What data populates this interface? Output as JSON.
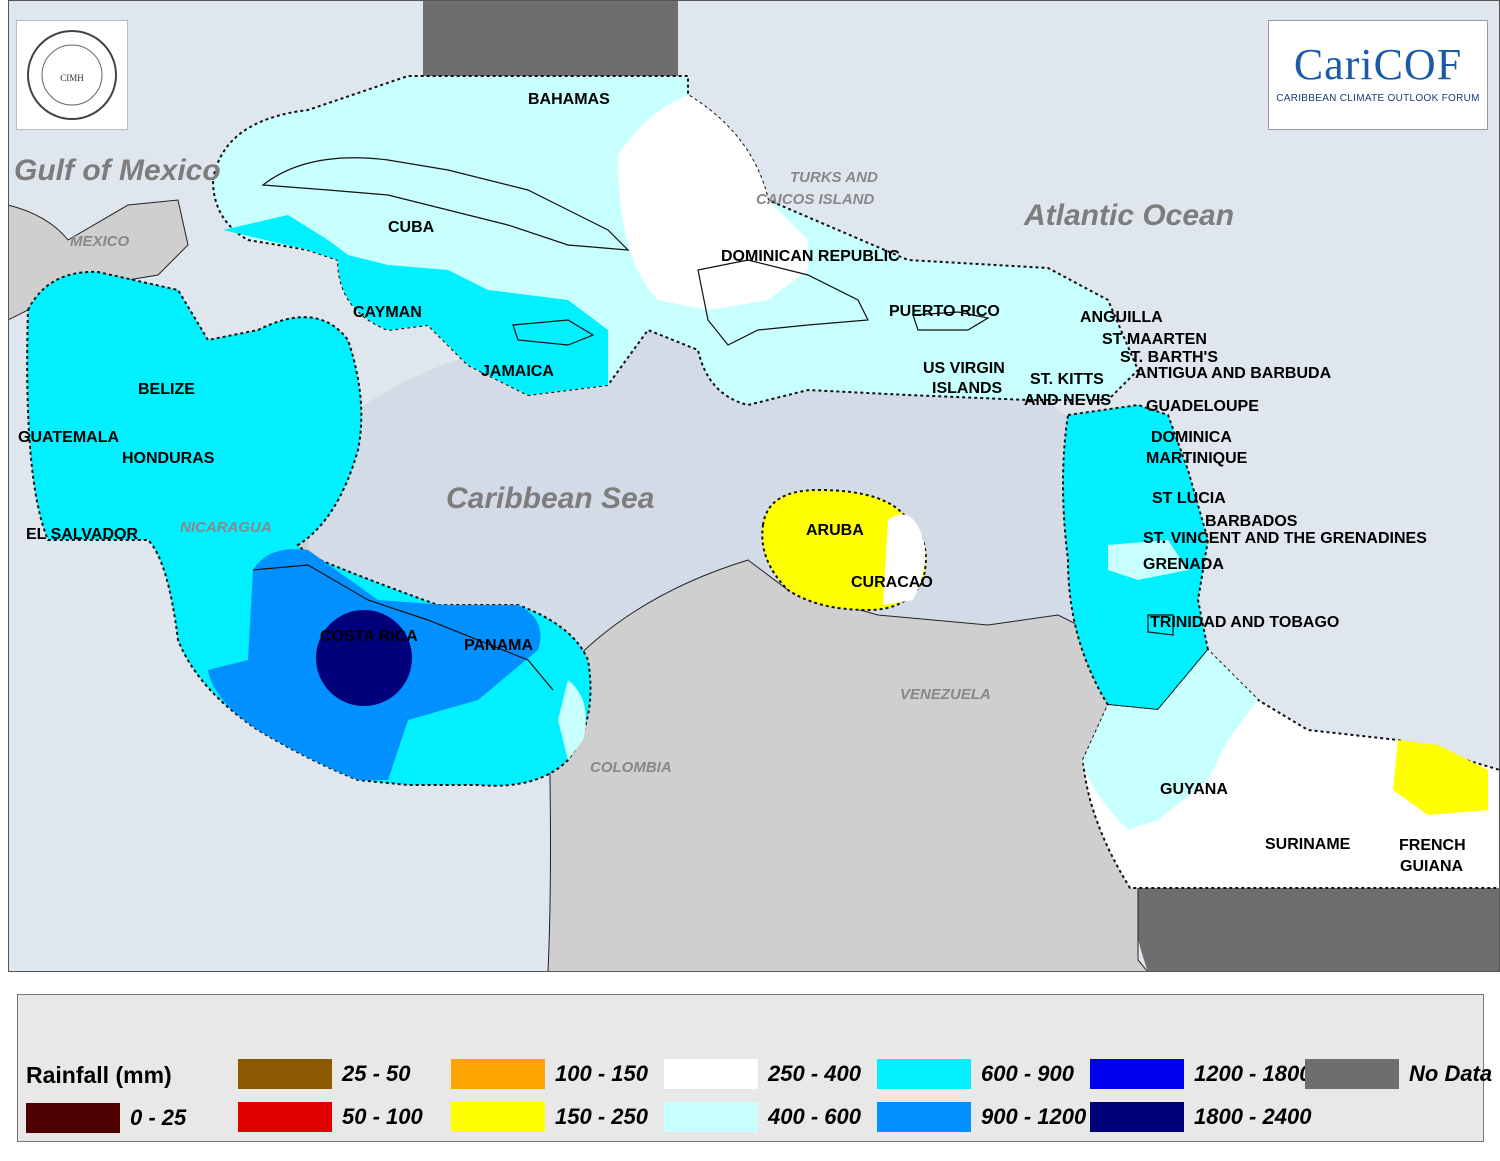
{
  "water_labels": {
    "gulf": "Gulf of Mexico",
    "atlantic": "Atlantic Ocean",
    "caribbean": "Caribbean Sea"
  },
  "land_labels": {
    "mexico": "MEXICO",
    "nicaragua": "NICARAGUA",
    "colombia": "COLOMBIA",
    "venezuela": "VENEZUELA",
    "turks1": "TURKS AND",
    "turks2": "CAICOS ISLAND"
  },
  "countries": {
    "bahamas": "BAHAMAS",
    "cuba": "CUBA",
    "cayman": "CAYMAN",
    "jamaica": "JAMAICA",
    "dominican_republic": "DOMINICAN REPUBLIC",
    "puerto_rico": "PUERTO RICO",
    "usvi1": "US VIRGIN",
    "usvi2": "ISLANDS",
    "stkitts1": "ST. KITTS",
    "stkitts2": "AND NEVIS",
    "anguilla": "ANGUILLA",
    "st_maarten": "ST MAARTEN",
    "st_barths": "ST. BARTH'S",
    "antigua": "ANTIGUA AND BARBUDA",
    "guadeloupe": "GUADELOUPE",
    "dominica": "DOMINICA",
    "martinique": "MARTINIQUE",
    "st_lucia": "ST LUCIA",
    "barbados": "BARBADOS",
    "st_vincent": "ST. VINCENT AND THE GRENADINES",
    "grenada": "GRENADA",
    "trinidad": "TRINIDAD AND TOBAGO",
    "guyana": "GUYANA",
    "suriname": "SURINAME",
    "french_guiana1": "FRENCH",
    "french_guiana2": "GUIANA",
    "belize": "BELIZE",
    "guatemala": "GUATEMALA",
    "honduras": "HONDURAS",
    "el_salvador": "EL SALVADOR",
    "costa_rica": "COSTA RICA",
    "panama": "PANAMA",
    "aruba": "ARUBA",
    "curacao": "CURACAO"
  },
  "logos": {
    "caricof_name": "CariCOF",
    "caricof_sub": "CARIBBEAN CLIMATE OUTLOOK FORUM",
    "cimh_text": "CIMH"
  },
  "legend": {
    "title": "Rainfall (mm)",
    "items": [
      {
        "label": "0 - 25",
        "color": "#4d0000"
      },
      {
        "label": "25 - 50",
        "color": "#8b5a00"
      },
      {
        "label": "50 - 100",
        "color": "#e00000"
      },
      {
        "label": "100 - 150",
        "color": "#ffa500"
      },
      {
        "label": "150 - 250",
        "color": "#ffff00"
      },
      {
        "label": "250 - 400",
        "color": "#ffffff"
      },
      {
        "label": "400 - 600",
        "color": "#c8ffff"
      },
      {
        "label": "600 - 900",
        "color": "#00f0ff"
      },
      {
        "label": "900 - 1200",
        "color": "#0090ff"
      },
      {
        "label": "1200 - 1800",
        "color": "#0000ee"
      },
      {
        "label": "1800 - 2400",
        "color": "#00007a"
      },
      {
        "label": "No Data",
        "color": "#6e6e6e"
      }
    ]
  }
}
